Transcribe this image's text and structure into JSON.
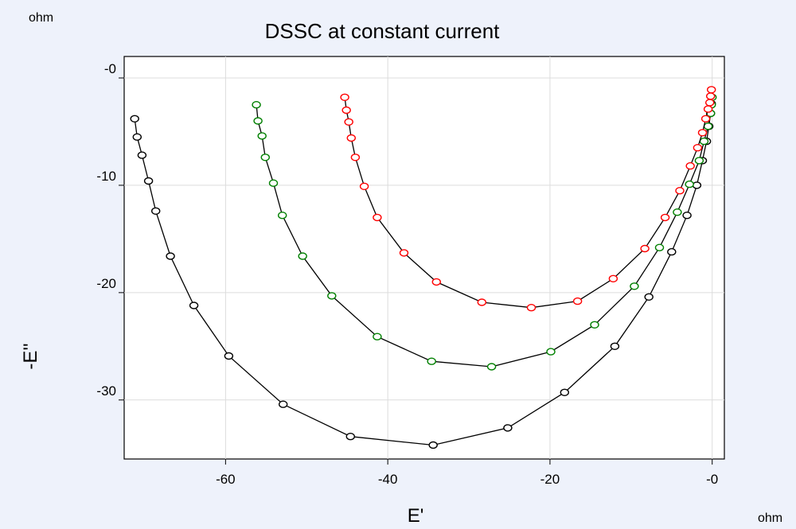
{
  "chart_data": {
    "type": "line",
    "title": "DSSC at constant current",
    "xlabel": "E'",
    "ylabel": "-E''",
    "x_unit": "ohm",
    "y_unit": "ohm",
    "xlim": [
      -72.5,
      1.5
    ],
    "ylim": [
      -35.5,
      2
    ],
    "x_reversed": true,
    "y_reversed": true,
    "grid": true,
    "legend": "none",
    "x_ticks": [
      {
        "value": -60,
        "label": "-60"
      },
      {
        "value": -40,
        "label": "-40"
      },
      {
        "value": -20,
        "label": "-20"
      },
      {
        "value": 0,
        "label": "-0"
      }
    ],
    "y_ticks": [
      {
        "value": 0,
        "label": "-0"
      },
      {
        "value": -10,
        "label": "-10"
      },
      {
        "value": -20,
        "label": "-20"
      },
      {
        "value": -30,
        "label": "-30"
      }
    ],
    "series": [
      {
        "color": "#000000",
        "points": [
          [
            -71.2,
            -3.8
          ],
          [
            -70.9,
            -5.5
          ],
          [
            -70.3,
            -7.2
          ],
          [
            -69.5,
            -9.6
          ],
          [
            -68.6,
            -12.4
          ],
          [
            -66.8,
            -16.6
          ],
          [
            -63.9,
            -21.2
          ],
          [
            -59.6,
            -25.9
          ],
          [
            -52.9,
            -30.4
          ],
          [
            -44.6,
            -33.4
          ],
          [
            -34.4,
            -34.2
          ],
          [
            -25.2,
            -32.6
          ],
          [
            -18.2,
            -29.3
          ],
          [
            -12.0,
            -25.0
          ],
          [
            -7.8,
            -20.4
          ],
          [
            -5.0,
            -16.2
          ],
          [
            -3.1,
            -12.8
          ],
          [
            -1.9,
            -10.0
          ],
          [
            -1.2,
            -7.7
          ],
          [
            -0.7,
            -5.9
          ],
          [
            -0.4,
            -4.5
          ],
          [
            -0.2,
            -3.3
          ],
          [
            -0.1,
            -2.4
          ]
        ]
      },
      {
        "color": "#008000",
        "points": [
          [
            -56.2,
            -2.5
          ],
          [
            -56.0,
            -4.0
          ],
          [
            -55.5,
            -5.4
          ],
          [
            -55.1,
            -7.4
          ],
          [
            -54.1,
            -9.8
          ],
          [
            -53.0,
            -12.8
          ],
          [
            -50.5,
            -16.6
          ],
          [
            -46.9,
            -20.3
          ],
          [
            -41.3,
            -24.1
          ],
          [
            -34.6,
            -26.4
          ],
          [
            -27.2,
            -26.9
          ],
          [
            -19.9,
            -25.5
          ],
          [
            -14.5,
            -23.0
          ],
          [
            -9.6,
            -19.4
          ],
          [
            -6.5,
            -15.8
          ],
          [
            -4.3,
            -12.5
          ],
          [
            -2.8,
            -9.9
          ],
          [
            -1.6,
            -7.7
          ],
          [
            -1.0,
            -5.9
          ],
          [
            -0.5,
            -4.5
          ],
          [
            -0.2,
            -3.3
          ],
          [
            -0.1,
            -2.5
          ],
          [
            0.0,
            -1.8
          ]
        ]
      },
      {
        "color": "#ff0000",
        "points": [
          [
            -45.3,
            -1.8
          ],
          [
            -45.1,
            -3.0
          ],
          [
            -44.8,
            -4.1
          ],
          [
            -44.5,
            -5.6
          ],
          [
            -44.0,
            -7.4
          ],
          [
            -42.9,
            -10.1
          ],
          [
            -41.3,
            -13.0
          ],
          [
            -38.0,
            -16.3
          ],
          [
            -34.0,
            -19.0
          ],
          [
            -28.4,
            -20.9
          ],
          [
            -22.3,
            -21.4
          ],
          [
            -16.6,
            -20.8
          ],
          [
            -12.2,
            -18.7
          ],
          [
            -8.3,
            -15.9
          ],
          [
            -5.8,
            -13.0
          ],
          [
            -4.0,
            -10.5
          ],
          [
            -2.7,
            -8.2
          ],
          [
            -1.8,
            -6.5
          ],
          [
            -1.2,
            -5.1
          ],
          [
            -0.8,
            -3.8
          ],
          [
            -0.5,
            -2.9
          ],
          [
            -0.3,
            -2.3
          ],
          [
            -0.2,
            -1.7
          ],
          [
            -0.1,
            -1.1
          ]
        ]
      }
    ]
  }
}
